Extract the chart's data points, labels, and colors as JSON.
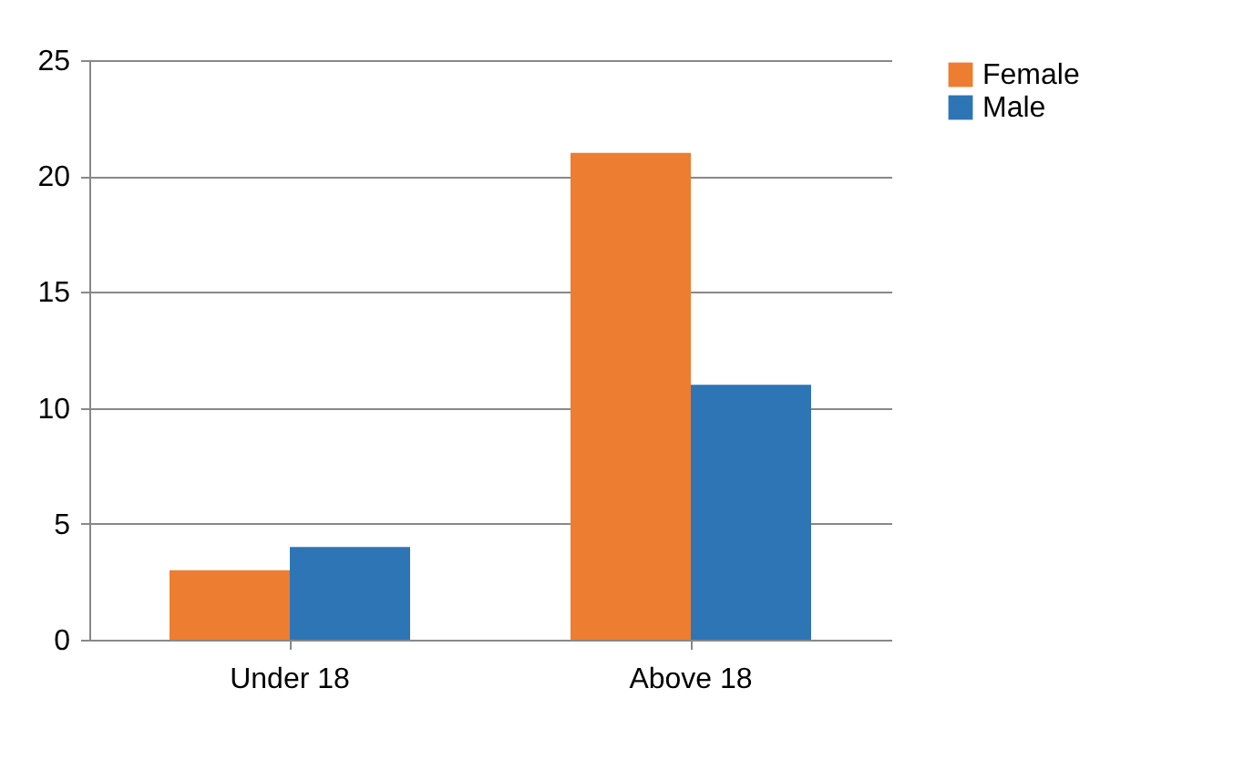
{
  "chart_data": {
    "type": "bar",
    "categories": [
      "Under 18",
      "Above 18"
    ],
    "series": [
      {
        "name": "Female",
        "color": "#ed7d31",
        "values": [
          3,
          21
        ]
      },
      {
        "name": "Male",
        "color": "#2e75b6",
        "values": [
          4,
          11
        ]
      }
    ],
    "ylim": [
      0,
      25
    ],
    "yticks": [
      0,
      5,
      10,
      15,
      20,
      25
    ],
    "grid": "y",
    "legend": "right"
  }
}
